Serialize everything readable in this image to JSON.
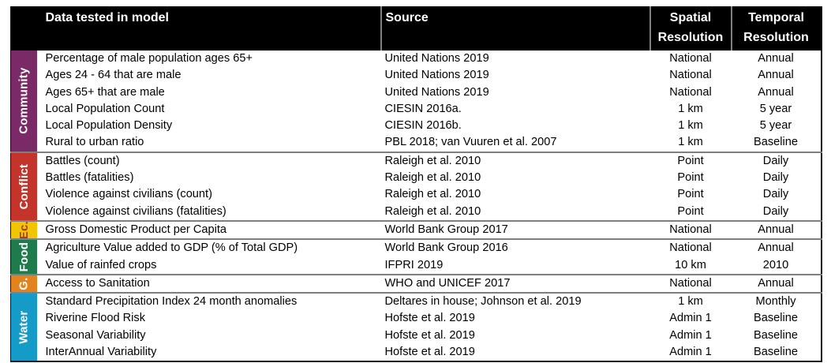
{
  "header": {
    "col_data": "Data tested in model",
    "col_source": "Source",
    "col_spatial": "Spatial Resolution",
    "col_temporal": "Temporal Resolution"
  },
  "colors": {
    "header_bg": "#000000",
    "header_text": "#ffffff",
    "header_divider": "#808080",
    "group_separator": "#7f7f7f",
    "body_text": "#000000"
  },
  "groups": [
    {
      "label": "Community",
      "color": "#7a2a66",
      "label_color": "#ffffff",
      "rows": [
        {
          "data": "Percentage of male population  ages 65+",
          "source": "United Nations 2019",
          "spatial": "National",
          "temporal": "Annual"
        },
        {
          "data": "Ages 24 - 64 that are male",
          "source": "United Nations 2019",
          "spatial": "National",
          "temporal": "Annual"
        },
        {
          "data": "Ages 65+ that are male",
          "source": "United Nations 2019",
          "spatial": "National",
          "temporal": "Annual"
        },
        {
          "data": "Local Population Count",
          "source": "CIESIN 2016a.",
          "spatial": "1 km",
          "temporal": "5 year"
        },
        {
          "data": "Local Population Density",
          "source": "CIESIN 2016b.",
          "spatial": "1 km",
          "temporal": "5 year"
        },
        {
          "data": "Rural to urban ratio",
          "source": "PBL 2018; van Vuuren et al. 2007",
          "spatial": "1 km",
          "temporal": "Baseline"
        }
      ]
    },
    {
      "label": "Conflict",
      "color": "#c4342b",
      "label_color": "#ffffff",
      "rows": [
        {
          "data": "Battles (count)",
          "source": "Raleigh et al. 2010",
          "spatial": "Point",
          "temporal": "Daily"
        },
        {
          "data": "Battles (fatalities)",
          "source": "Raleigh et al. 2010",
          "spatial": "Point",
          "temporal": "Daily"
        },
        {
          "data": "Violence against civilians  (count)",
          "source": "Raleigh et al. 2010",
          "spatial": "Point",
          "temporal": "Daily"
        },
        {
          "data": "Violence against civilians  (fatalities)",
          "source": "Raleigh et al. 2010",
          "spatial": "Point",
          "temporal": "Daily"
        }
      ]
    },
    {
      "label": "Ec.",
      "color": "#f2c500",
      "label_color": "#a33a28",
      "rows": [
        {
          "data": "Gross Domestic Product per Capita",
          "source": "World Bank Group 2017",
          "spatial": "National",
          "temporal": "Annual"
        }
      ]
    },
    {
      "label": "Food",
      "color": "#1e7b4b",
      "label_color": "#ffffff",
      "rows": [
        {
          "data": "Agriculture Value added to GDP (% of Total GDP)",
          "source": "World Bank Group 2016",
          "spatial": "National",
          "temporal": "Annual"
        },
        {
          "data": "Value of rainfed crops",
          "source": "IFPRI 2019",
          "spatial": "10 km",
          "temporal": "2010"
        }
      ]
    },
    {
      "label": "G.",
      "color": "#e2831e",
      "label_color": "#ffffff",
      "rows": [
        {
          "data": "Access to Sanitation",
          "source": "WHO and UNICEF 2017",
          "spatial": "National",
          "temporal": "Annual"
        }
      ]
    },
    {
      "label": "Water",
      "color": "#149bc8",
      "label_color": "#ffffff",
      "rows": [
        {
          "data": "Standard Precipitation Index 24 month anomalies",
          "source": "Deltares in house; Johnson et al. 2019",
          "spatial": "1 km",
          "temporal": "Monthly"
        },
        {
          "data": "Riverine Flood Risk",
          "source": "Hofste et al. 2019",
          "spatial": "Admin 1",
          "temporal": "Baseline"
        },
        {
          "data": "Seasonal Variability",
          "source": "Hofste et al. 2019",
          "spatial": "Admin 1",
          "temporal": "Baseline"
        },
        {
          "data": "InterAnnual Variability",
          "source": "Hofste et al. 2019",
          "spatial": "Admin 1",
          "temporal": "Baseline"
        }
      ]
    }
  ]
}
